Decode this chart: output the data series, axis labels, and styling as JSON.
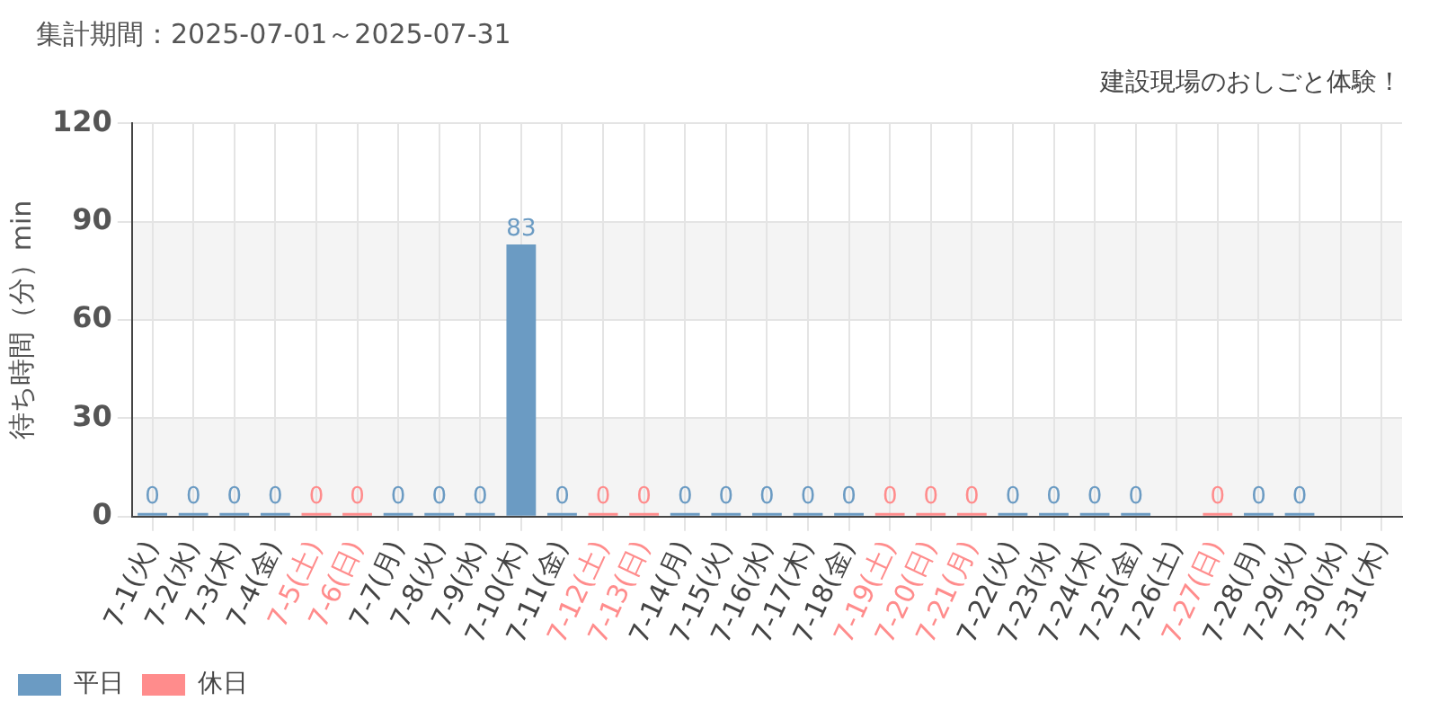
{
  "chart_data": {
    "type": "bar",
    "title": "建設現場のおしごと体験！",
    "subtitle": "集計期間：2025-07-01～2025-07-31",
    "ylabel": "待ち時間（分）min",
    "categories": [
      "7-1(火)",
      "7-2(水)",
      "7-3(木)",
      "7-4(金)",
      "7-5(土)",
      "7-6(日)",
      "7-7(月)",
      "7-8(火)",
      "7-9(水)",
      "7-10(木)",
      "7-11(金)",
      "7-12(土)",
      "7-13(日)",
      "7-14(月)",
      "7-15(火)",
      "7-16(水)",
      "7-17(木)",
      "7-18(金)",
      "7-19(土)",
      "7-20(日)",
      "7-21(月)",
      "7-22(火)",
      "7-23(水)",
      "7-24(木)",
      "7-25(金)",
      "7-26(土)",
      "7-27(日)",
      "7-28(月)",
      "7-29(火)",
      "7-30(水)",
      "7-31(木)"
    ],
    "series": [
      {
        "name": "平日",
        "color": "#6b9bc3",
        "values": [
          0,
          0,
          0,
          0,
          null,
          null,
          0,
          0,
          0,
          83,
          0,
          null,
          null,
          0,
          0,
          0,
          0,
          0,
          null,
          null,
          null,
          0,
          0,
          0,
          0,
          null,
          null,
          0,
          0,
          null,
          null
        ]
      },
      {
        "name": "休日",
        "color": "#ff8c8c",
        "values": [
          null,
          null,
          null,
          null,
          0,
          0,
          null,
          null,
          null,
          null,
          null,
          0,
          0,
          null,
          null,
          null,
          null,
          null,
          0,
          0,
          0,
          null,
          null,
          null,
          null,
          null,
          0,
          null,
          null,
          null,
          null
        ]
      }
    ],
    "ylim": [
      0,
      120
    ],
    "yticks": [
      0,
      30,
      60,
      90,
      120
    ],
    "grid": true,
    "legend": "bottom left",
    "data_labels": true
  }
}
